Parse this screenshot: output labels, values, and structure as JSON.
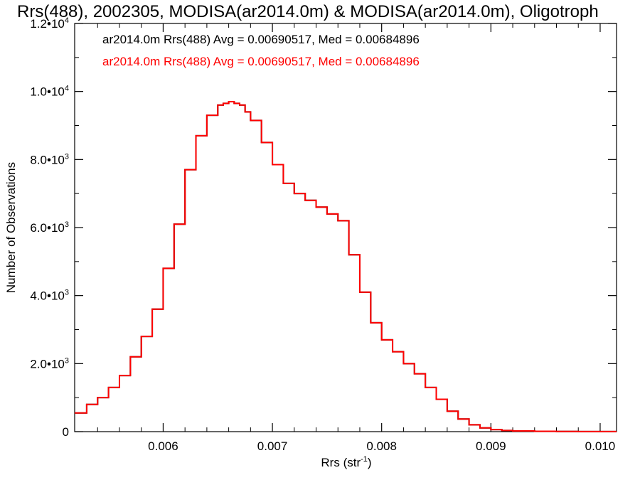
{
  "chart_data": {
    "type": "line",
    "title": "Rrs(488), 2002305, MODISA(ar2014.0m) & MODISA(ar2014.0m), Oligotroph",
    "xlabel": "Rrs (str",
    "xlabel_sup": "-1",
    "xlabel_suffix": ")",
    "ylabel": "Number of Observations",
    "xlim": [
      0.00519,
      0.01015
    ],
    "ylim": [
      0,
      12000
    ],
    "x_ticks": [
      {
        "value": 0.006,
        "label": "0.006"
      },
      {
        "value": 0.007,
        "label": "0.007"
      },
      {
        "value": 0.008,
        "label": "0.008"
      },
      {
        "value": 0.009,
        "label": "0.009"
      },
      {
        "value": 0.01,
        "label": "0.010"
      }
    ],
    "y_ticks": [
      {
        "value": 0,
        "mant": "0",
        "exp": ""
      },
      {
        "value": 2000,
        "mant": "2.0•10",
        "exp": "3"
      },
      {
        "value": 4000,
        "mant": "4.0•10",
        "exp": "3"
      },
      {
        "value": 6000,
        "mant": "6.0•10",
        "exp": "3"
      },
      {
        "value": 8000,
        "mant": "8.0•10",
        "exp": "3"
      },
      {
        "value": 10000,
        "mant": "1.0•10",
        "exp": "4"
      },
      {
        "value": 12000,
        "mant": "1.2•10",
        "exp": "4"
      }
    ],
    "series": [
      {
        "name": "ar2014.0m Rrs(488) Avg = 0.00690517, Med = 0.00684896",
        "color": "#000000",
        "x": [
          0.00519,
          0.0053,
          0.0054,
          0.0055,
          0.0056,
          0.0057,
          0.0058,
          0.0059,
          0.006,
          0.0061,
          0.0062,
          0.0063,
          0.0064,
          0.0065,
          0.00655,
          0.0066,
          0.00665,
          0.0067,
          0.00675,
          0.0068,
          0.0069,
          0.007,
          0.0071,
          0.0072,
          0.0073,
          0.0074,
          0.0075,
          0.0076,
          0.0077,
          0.0078,
          0.0079,
          0.008,
          0.0081,
          0.0082,
          0.0083,
          0.0084,
          0.0085,
          0.0086,
          0.0087,
          0.0088,
          0.0089,
          0.009,
          0.0091,
          0.0092,
          0.0094,
          0.0096,
          0.0098,
          0.01,
          0.01015
        ],
        "y": [
          550,
          800,
          1000,
          1300,
          1650,
          2200,
          2800,
          3600,
          4800,
          6100,
          7700,
          8700,
          9300,
          9600,
          9650,
          9700,
          9650,
          9600,
          9400,
          9150,
          8500,
          7850,
          7300,
          7000,
          6800,
          6600,
          6400,
          6200,
          5200,
          4100,
          3200,
          2700,
          2350,
          2000,
          1700,
          1300,
          950,
          600,
          370,
          200,
          110,
          60,
          35,
          20,
          10,
          5,
          3,
          2,
          2
        ]
      },
      {
        "name": "ar2014.0m Rrs(488) Avg = 0.00690517, Med = 0.00684896",
        "color": "#ff0000",
        "x": [
          0.00519,
          0.0053,
          0.0054,
          0.0055,
          0.0056,
          0.0057,
          0.0058,
          0.0059,
          0.006,
          0.0061,
          0.0062,
          0.0063,
          0.0064,
          0.0065,
          0.00655,
          0.0066,
          0.00665,
          0.0067,
          0.00675,
          0.0068,
          0.0069,
          0.007,
          0.0071,
          0.0072,
          0.0073,
          0.0074,
          0.0075,
          0.0076,
          0.0077,
          0.0078,
          0.0079,
          0.008,
          0.0081,
          0.0082,
          0.0083,
          0.0084,
          0.0085,
          0.0086,
          0.0087,
          0.0088,
          0.0089,
          0.009,
          0.0091,
          0.0092,
          0.0094,
          0.0096,
          0.0098,
          0.01,
          0.01015
        ],
        "y": [
          550,
          800,
          1000,
          1300,
          1650,
          2200,
          2800,
          3600,
          4800,
          6100,
          7700,
          8700,
          9300,
          9600,
          9650,
          9700,
          9650,
          9600,
          9400,
          9150,
          8500,
          7850,
          7300,
          7000,
          6800,
          6600,
          6400,
          6200,
          5200,
          4100,
          3200,
          2700,
          2350,
          2000,
          1700,
          1300,
          950,
          600,
          370,
          200,
          110,
          60,
          35,
          20,
          10,
          5,
          3,
          2,
          2
        ]
      }
    ],
    "grid": false,
    "legend_position": "top-left"
  }
}
